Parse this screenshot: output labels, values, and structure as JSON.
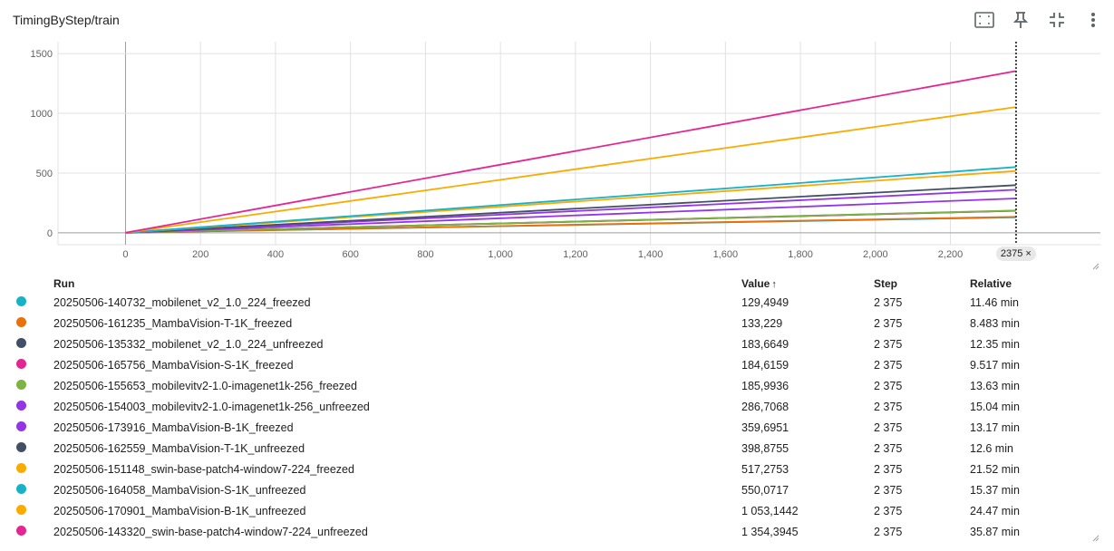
{
  "header": {
    "title": "TimingByStep/train",
    "icons": [
      "fit-domain-icon",
      "pin-icon",
      "collapse-icon",
      "more-vert-icon"
    ]
  },
  "colors": {
    "grid": "#e0e0e0",
    "axis": "#9e9e9e",
    "tick_text": "#616161",
    "step_line": "#424242"
  },
  "chart_data": {
    "type": "line",
    "title": "",
    "xlabel": "",
    "ylabel": "",
    "xlim": [
      -180,
      2600
    ],
    "ylim": [
      -100,
      1600
    ],
    "x_ticks": [
      0,
      200,
      400,
      600,
      800,
      1000,
      1200,
      1400,
      1600,
      1800,
      2000,
      2200
    ],
    "x_tick_labels": [
      "0",
      "200",
      "400",
      "600",
      "800",
      "1,000",
      "1,200",
      "1,400",
      "1,600",
      "1,800",
      "2,000",
      "2,200"
    ],
    "y_ticks": [
      0,
      500,
      1000,
      1500
    ],
    "y_tick_labels": [
      "0",
      "500",
      "1000",
      "1500"
    ],
    "grid": true,
    "hover_step": 2375,
    "hover_step_label": "2375",
    "series": [
      {
        "name": "20250506-140732_mobilenet_v2_1.0_224_freezed",
        "color": "#17b2c8",
        "points": [
          [
            0,
            0
          ],
          [
            2375,
            129.4949
          ]
        ]
      },
      {
        "name": "20250506-161235_MambaVision-T-1K_freezed",
        "color": "#e8710a",
        "points": [
          [
            0,
            0
          ],
          [
            2375,
            133.229
          ]
        ]
      },
      {
        "name": "20250506-135332_mobilenet_v2_1.0_224_unfreezed",
        "color": "#425066",
        "points": [
          [
            0,
            0
          ],
          [
            2375,
            183.6649
          ]
        ]
      },
      {
        "name": "20250506-165756_MambaVision-S-1K_freezed",
        "color": "#e52592",
        "points": [
          [
            0,
            0
          ],
          [
            2375,
            184.6159
          ]
        ]
      },
      {
        "name": "20250506-155653_mobilevitv2-1.0-imagenet1k-256_freezed",
        "color": "#7cb342",
        "points": [
          [
            0,
            0
          ],
          [
            2375,
            185.9936
          ]
        ]
      },
      {
        "name": "20250506-154003_mobilevitv2-1.0-imagenet1k-256_unfreezed",
        "color": "#9334e6",
        "points": [
          [
            0,
            0
          ],
          [
            2375,
            286.7068
          ]
        ]
      },
      {
        "name": "20250506-173916_MambaVision-B-1K_freezed",
        "color": "#9334e6",
        "points": [
          [
            0,
            0
          ],
          [
            2375,
            359.6951
          ]
        ]
      },
      {
        "name": "20250506-162559_MambaVision-T-1K_unfreezed",
        "color": "#425066",
        "points": [
          [
            0,
            0
          ],
          [
            2375,
            398.8755
          ]
        ]
      },
      {
        "name": "20250506-151148_swin-base-patch4-window7-224_freezed",
        "color": "#f9ab00",
        "points": [
          [
            0,
            0
          ],
          [
            2375,
            517.2753
          ]
        ]
      },
      {
        "name": "20250506-164058_MambaVision-S-1K_unfreezed",
        "color": "#17b2c8",
        "points": [
          [
            0,
            0
          ],
          [
            2375,
            550.0717
          ]
        ]
      },
      {
        "name": "20250506-170901_MambaVision-B-1K_unfreezed",
        "color": "#f9ab00",
        "points": [
          [
            0,
            0
          ],
          [
            2375,
            1053.1442
          ]
        ]
      },
      {
        "name": "20250506-143320_swin-base-patch4-window7-224_unfreezed",
        "color": "#e52592",
        "points": [
          [
            0,
            0
          ],
          [
            2375,
            1354.3945
          ]
        ]
      }
    ]
  },
  "table": {
    "headers": {
      "run": "Run",
      "value": "Value",
      "step": "Step",
      "relative": "Relative"
    },
    "sort_indicator": "↑",
    "rows": [
      {
        "color": "#17b2c8",
        "run": "20250506-140732_mobilenet_v2_1.0_224_freezed",
        "value": "129,4949",
        "step": "2 375",
        "relative": "11.46 min"
      },
      {
        "color": "#e8710a",
        "run": "20250506-161235_MambaVision-T-1K_freezed",
        "value": "133,229",
        "step": "2 375",
        "relative": "8.483 min"
      },
      {
        "color": "#425066",
        "run": "20250506-135332_mobilenet_v2_1.0_224_unfreezed",
        "value": "183,6649",
        "step": "2 375",
        "relative": "12.35 min"
      },
      {
        "color": "#e52592",
        "run": "20250506-165756_MambaVision-S-1K_freezed",
        "value": "184,6159",
        "step": "2 375",
        "relative": "9.517 min"
      },
      {
        "color": "#7cb342",
        "run": "20250506-155653_mobilevitv2-1.0-imagenet1k-256_freezed",
        "value": "185,9936",
        "step": "2 375",
        "relative": "13.63 min"
      },
      {
        "color": "#9334e6",
        "run": "20250506-154003_mobilevitv2-1.0-imagenet1k-256_unfreezed",
        "value": "286,7068",
        "step": "2 375",
        "relative": "15.04 min"
      },
      {
        "color": "#9334e6",
        "run": "20250506-173916_MambaVision-B-1K_freezed",
        "value": "359,6951",
        "step": "2 375",
        "relative": "13.17 min"
      },
      {
        "color": "#425066",
        "run": "20250506-162559_MambaVision-T-1K_unfreezed",
        "value": "398,8755",
        "step": "2 375",
        "relative": "12.6 min"
      },
      {
        "color": "#f9ab00",
        "run": "20250506-151148_swin-base-patch4-window7-224_freezed",
        "value": "517,2753",
        "step": "2 375",
        "relative": "21.52 min"
      },
      {
        "color": "#17b2c8",
        "run": "20250506-164058_MambaVision-S-1K_unfreezed",
        "value": "550,0717",
        "step": "2 375",
        "relative": "15.37 min"
      },
      {
        "color": "#f9ab00",
        "run": "20250506-170901_MambaVision-B-1K_unfreezed",
        "value": "1 053,1442",
        "step": "2 375",
        "relative": "24.47 min"
      },
      {
        "color": "#e52592",
        "run": "20250506-143320_swin-base-patch4-window7-224_unfreezed",
        "value": "1 354,3945",
        "step": "2 375",
        "relative": "35.87 min"
      }
    ]
  }
}
